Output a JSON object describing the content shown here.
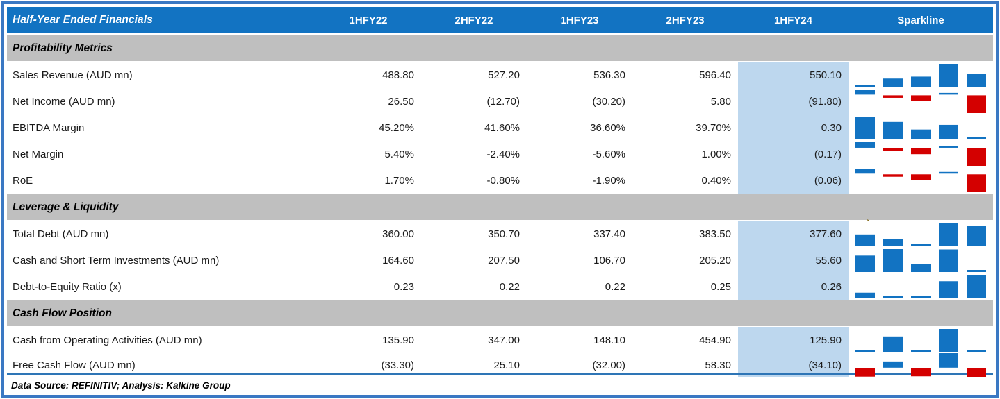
{
  "footer": {
    "text": "Data Source: REFINITIV; Analysis: Kalkine Group"
  },
  "colors": {
    "header_bg": "#1273C2",
    "border": "#3A78C3",
    "separator": "#2E75B6",
    "section_bg": "#BFBFBF",
    "highlight_bg": "#BDD7EE",
    "bar_positive": "#1273C2",
    "bar_negative": "#D40000",
    "text": "#1A1A1A"
  },
  "chart_data": {
    "type": "table",
    "title": "Half-Year Ended Financials",
    "columns": [
      "1HFY22",
      "2HFY22",
      "1HFY23",
      "2HFY23",
      "1HFY24",
      "Sparkline"
    ],
    "highlighted_column": "1HFY24",
    "sparkline_type": "bar",
    "sections": [
      {
        "title": "Profitability Metrics",
        "rows": [
          {
            "label": "Sales Revenue (AUD mn)",
            "display": [
              "488.80",
              "527.20",
              "536.30",
              "596.40",
              "550.10"
            ],
            "values": [
              488.8,
              527.2,
              536.3,
              596.4,
              550.1
            ]
          },
          {
            "label": "Net Income (AUD mn)",
            "display": [
              "26.50",
              "(12.70)",
              "(30.20)",
              "5.80",
              "(91.80)"
            ],
            "values": [
              26.5,
              -12.7,
              -30.2,
              5.8,
              -91.8
            ]
          },
          {
            "label": "EBITDA Margin",
            "display": [
              "45.20%",
              "41.60%",
              "36.60%",
              "39.70%",
              "0.30"
            ],
            "values": [
              0.452,
              0.416,
              0.366,
              0.397,
              0.3
            ]
          },
          {
            "label": "Net Margin",
            "display": [
              "5.40%",
              "-2.40%",
              "-5.60%",
              "1.00%",
              "(0.17)"
            ],
            "values": [
              0.054,
              -0.024,
              -0.056,
              0.01,
              -0.17
            ]
          },
          {
            "label": "RoE",
            "display": [
              "1.70%",
              "-0.80%",
              "-1.90%",
              "0.40%",
              "(0.06)"
            ],
            "values": [
              0.017,
              -0.008,
              -0.019,
              0.004,
              -0.06
            ]
          }
        ]
      },
      {
        "title": "Leverage & Liquidity",
        "rows": [
          {
            "label": "Total Debt (AUD mn)",
            "display": [
              "360.00",
              "350.70",
              "337.40",
              "383.50",
              "377.60"
            ],
            "values": [
              360.0,
              350.7,
              337.4,
              383.5,
              377.6
            ],
            "note": "`"
          },
          {
            "label": "Cash and Short Term Investments (AUD mn)",
            "display": [
              "164.60",
              "207.50",
              "106.70",
              "205.20",
              "55.60"
            ],
            "values": [
              164.6,
              207.5,
              106.7,
              205.2,
              55.6
            ]
          },
          {
            "label": "Debt-to-Equity Ratio (x)",
            "display": [
              "0.23",
              "0.22",
              "0.22",
              "0.25",
              "0.26"
            ],
            "values": [
              0.23,
              0.22,
              0.22,
              0.25,
              0.26
            ]
          }
        ]
      },
      {
        "title": "Cash Flow Position",
        "rows": [
          {
            "label": "Cash from Operating Activities (AUD mn)",
            "display": [
              "135.90",
              "347.00",
              "148.10",
              "454.90",
              "125.90"
            ],
            "values": [
              135.9,
              347.0,
              148.1,
              454.9,
              125.9
            ]
          },
          {
            "label": "Free Cash Flow (AUD mn)",
            "display": [
              "(33.30)",
              "25.10",
              "(32.00)",
              "58.30",
              "(34.10)"
            ],
            "values": [
              -33.3,
              25.1,
              -32.0,
              58.3,
              -34.1
            ]
          }
        ]
      }
    ]
  }
}
